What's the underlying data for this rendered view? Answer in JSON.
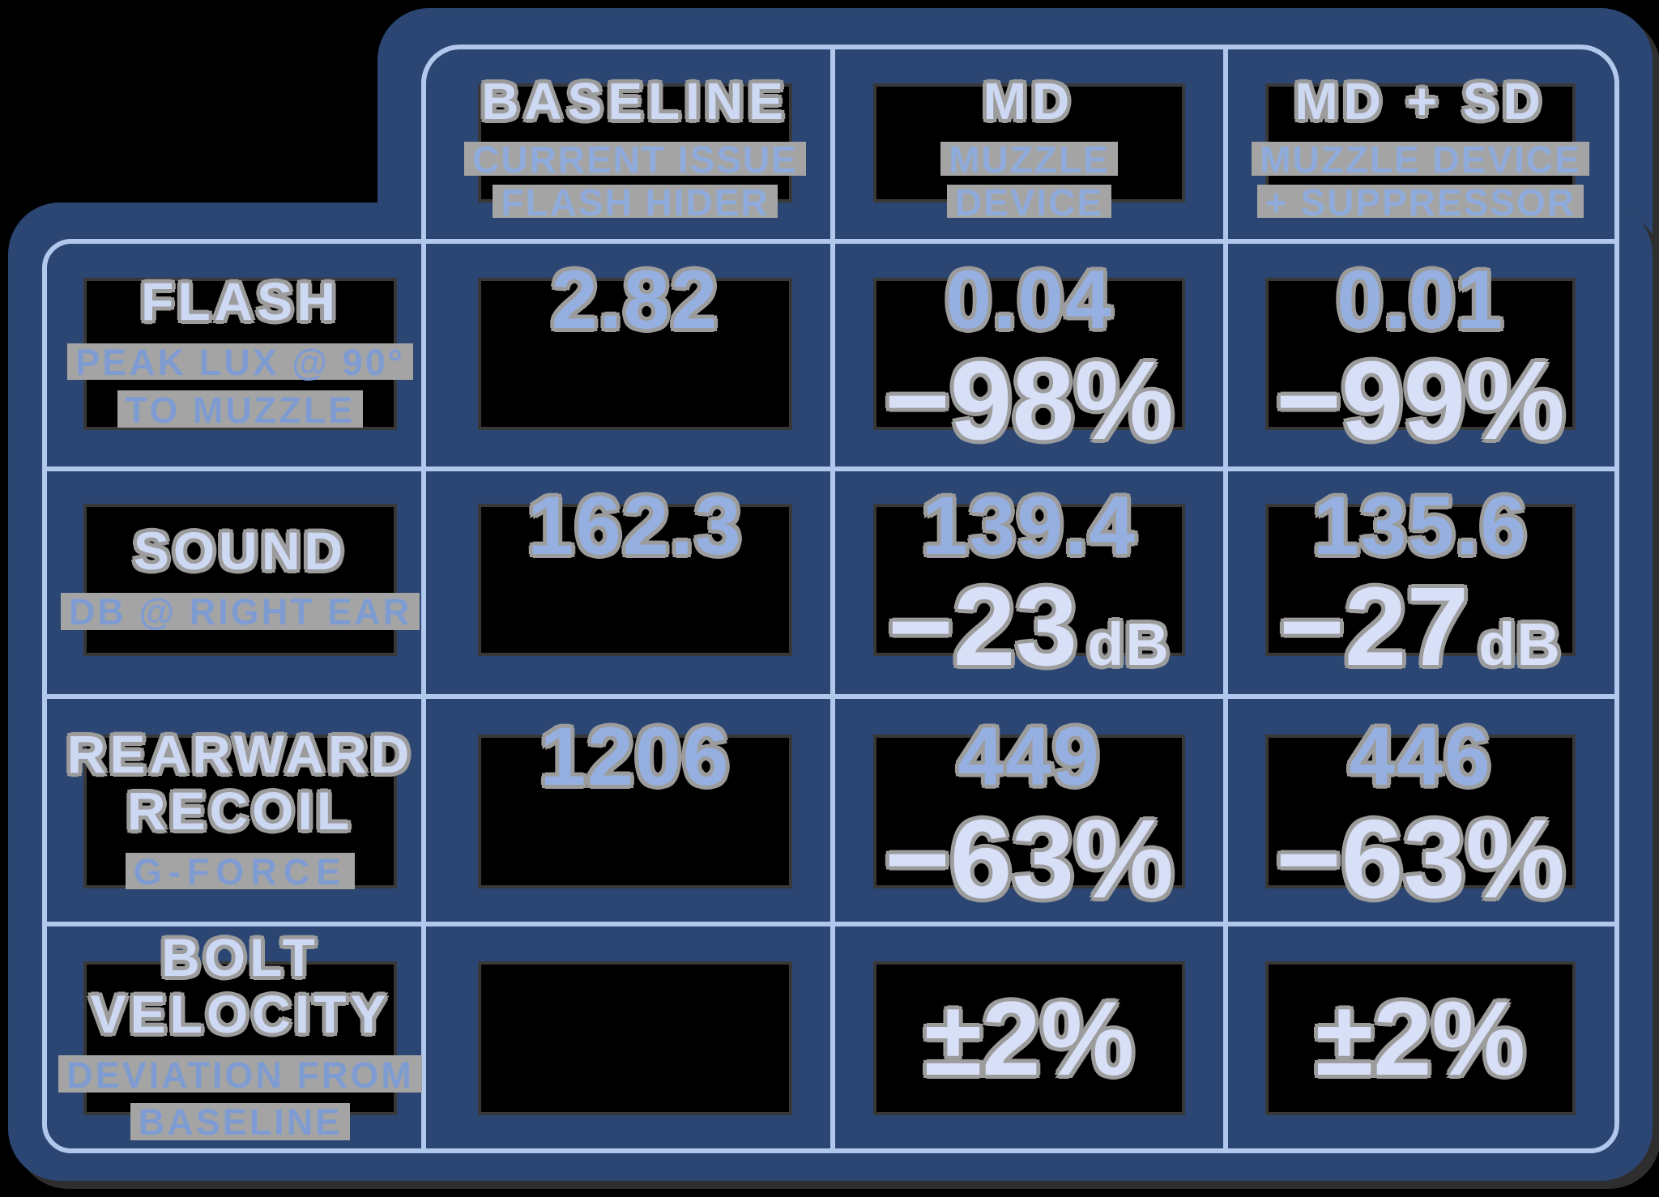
{
  "colors": {
    "background": "#000000",
    "panel_navy": "#2b4672",
    "grid_line": "#b2c7ec",
    "title_text": "#cdd8f3",
    "value_text": "#95b0e0",
    "subtitle_text": "#7f9cd2",
    "delta_text": "#d8e0f8",
    "halo_gray": "#9c9c9c"
  },
  "table": {
    "columns": [
      {
        "title": "BASELINE",
        "sub": [
          "CURRENT ISSUE",
          "FLASH HIDER"
        ]
      },
      {
        "title": "MD",
        "sub": [
          "MUZZLE",
          "DEVICE"
        ]
      },
      {
        "title": "MD + SD",
        "sub": [
          "MUZZLE DEVICE",
          "+ SUPPRESSOR"
        ]
      }
    ],
    "rows": [
      {
        "metric": [
          "FLASH"
        ],
        "sublabel": [
          "PEAK LUX @ 90°",
          "TO MUZZLE"
        ],
        "cells": [
          {
            "value": "2.82"
          },
          {
            "value": "0.04",
            "delta": "−98%"
          },
          {
            "value": "0.01",
            "delta": "−99%"
          }
        ]
      },
      {
        "metric": [
          "SOUND"
        ],
        "sublabel": [
          "DB @ RIGHT EAR"
        ],
        "cells": [
          {
            "value": "162.3"
          },
          {
            "value": "139.4",
            "delta": "−23",
            "unit": "dB"
          },
          {
            "value": "135.6",
            "delta": "−27",
            "unit": "dB"
          }
        ]
      },
      {
        "metric": [
          "REARWARD",
          "RECOIL"
        ],
        "sublabel": [
          "G-FORCE"
        ],
        "cells": [
          {
            "value": "1206"
          },
          {
            "value": "449",
            "delta": "−63%"
          },
          {
            "value": "446",
            "delta": "−63%"
          }
        ]
      },
      {
        "metric": [
          "BOLT",
          "VELOCITY"
        ],
        "sublabel": [
          "DEVIATION FROM",
          "BASELINE"
        ],
        "cells": [
          {
            "value": ""
          },
          {
            "delta": "±2%"
          },
          {
            "delta": "±2%"
          }
        ]
      }
    ]
  },
  "chart_data": {
    "type": "table",
    "title": "Muzzle device performance comparison",
    "columns": [
      "BASELINE (CURRENT ISSUE FLASH HIDER)",
      "MD (MUZZLE DEVICE)",
      "MD + SD (MUZZLE DEVICE + SUPPRESSOR)"
    ],
    "rows": [
      {
        "metric": "FLASH (PEAK LUX @ 90° TO MUZZLE)",
        "baseline": 2.82,
        "md": 0.04,
        "md_change": "-98%",
        "md_sd": 0.01,
        "md_sd_change": "-99%"
      },
      {
        "metric": "SOUND (DB @ RIGHT EAR)",
        "baseline": 162.3,
        "md": 139.4,
        "md_change": "-23 dB",
        "md_sd": 135.6,
        "md_sd_change": "-27 dB"
      },
      {
        "metric": "REARWARD RECOIL (G-FORCE)",
        "baseline": 1206,
        "md": 449,
        "md_change": "-63%",
        "md_sd": 446,
        "md_sd_change": "-63%"
      },
      {
        "metric": "BOLT VELOCITY (DEVIATION FROM BASELINE)",
        "baseline": null,
        "md": "±2%",
        "md_sd": "±2%"
      }
    ]
  }
}
